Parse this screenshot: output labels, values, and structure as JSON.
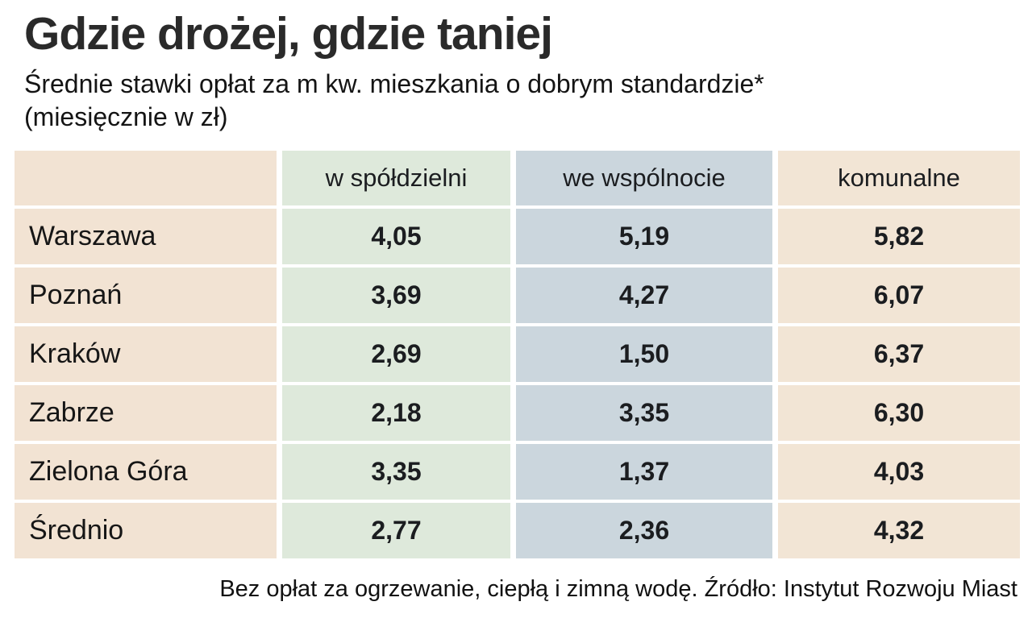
{
  "title": "Gdzie drożej, gdzie taniej",
  "subtitle_line1": "Średnie stawki opłat za m kw. mieszkania o dobrym standardzie*",
  "subtitle_line2": "(miesięcznie w zł)",
  "footnote": "Bez opłat za ogrzewanie, ciepłą i zimną wodę. Źródło: Instytut Rozwoju Miast",
  "colors": {
    "label_column_bg": "#f2e3d3",
    "spoldzielnia_column_bg": "#dee9db",
    "wspolnota_column_bg": "#cbd6dd",
    "komunalne_column_bg": "#f2e5d5",
    "background": "#ffffff",
    "text": "#1a1a1a"
  },
  "chart_data": {
    "type": "table",
    "title": "Gdzie drożej, gdzie taniej",
    "subtitle": "Średnie stawki opłat za m kw. mieszkania o dobrym standardzie* (miesięcznie w zł)",
    "unit": "zł / m kw. miesięcznie",
    "columns": [
      "",
      "w spółdzielni",
      "we wspólnocie",
      "komunalne"
    ],
    "rows": [
      {
        "label": "Warszawa",
        "values": [
          "4,05",
          "5,19",
          "5,82"
        ]
      },
      {
        "label": "Poznań",
        "values": [
          "3,69",
          "4,27",
          "6,07"
        ]
      },
      {
        "label": "Kraków",
        "values": [
          "2,69",
          "1,50",
          "6,37"
        ]
      },
      {
        "label": "Zabrze",
        "values": [
          "2,18",
          "3,35",
          "6,30"
        ]
      },
      {
        "label": "Zielona Góra",
        "values": [
          "3,35",
          "1,37",
          "4,03"
        ]
      },
      {
        "label": "Średnio",
        "values": [
          "2,77",
          "2,36",
          "4,32"
        ]
      }
    ],
    "source": "Instytut Rozwoju Miast",
    "note": "Bez opłat za ogrzewanie, ciepłą i zimną wodę."
  }
}
